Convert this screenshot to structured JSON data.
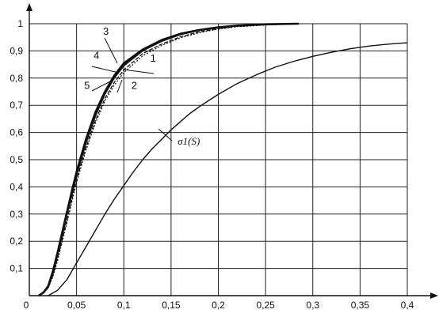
{
  "chart_data": {
    "type": "line",
    "xlim": [
      0,
      0.4
    ],
    "ylim": [
      0,
      1
    ],
    "grid": true,
    "x_ticks": [
      "0",
      "0,05",
      "0,1",
      "0,15",
      "0,2",
      "0,25",
      "0,3",
      "0,35",
      "0,4"
    ],
    "y_ticks": [
      "0,1",
      "0,2",
      "0,3",
      "0,4",
      "0,5",
      "0,6",
      "0,7",
      "0,8",
      "0,9",
      "1"
    ],
    "series": [
      {
        "name": "1",
        "points": [
          [
            0.01,
            0
          ],
          [
            0.015,
            0.01
          ],
          [
            0.02,
            0.03
          ],
          [
            0.025,
            0.08
          ],
          [
            0.03,
            0.15
          ],
          [
            0.035,
            0.22
          ],
          [
            0.04,
            0.3
          ],
          [
            0.045,
            0.37
          ],
          [
            0.05,
            0.44
          ],
          [
            0.06,
            0.56
          ],
          [
            0.07,
            0.66
          ],
          [
            0.08,
            0.74
          ],
          [
            0.09,
            0.8
          ],
          [
            0.1,
            0.845
          ],
          [
            0.12,
            0.9
          ],
          [
            0.14,
            0.935
          ],
          [
            0.16,
            0.96
          ],
          [
            0.18,
            0.975
          ],
          [
            0.2,
            0.985
          ],
          [
            0.22,
            0.992
          ],
          [
            0.25,
            0.997
          ],
          [
            0.285,
            1.0
          ]
        ]
      },
      {
        "name": "2",
        "points": [
          [
            0.01,
            0
          ],
          [
            0.015,
            0.01
          ],
          [
            0.02,
            0.03
          ],
          [
            0.025,
            0.075
          ],
          [
            0.03,
            0.14
          ],
          [
            0.035,
            0.21
          ],
          [
            0.04,
            0.28
          ],
          [
            0.045,
            0.355
          ],
          [
            0.05,
            0.425
          ],
          [
            0.06,
            0.545
          ],
          [
            0.07,
            0.645
          ],
          [
            0.08,
            0.725
          ],
          [
            0.09,
            0.785
          ],
          [
            0.1,
            0.83
          ],
          [
            0.12,
            0.89
          ],
          [
            0.14,
            0.925
          ],
          [
            0.16,
            0.952
          ],
          [
            0.18,
            0.97
          ],
          [
            0.2,
            0.982
          ],
          [
            0.22,
            0.99
          ],
          [
            0.25,
            0.996
          ],
          [
            0.285,
            1.0
          ]
        ]
      },
      {
        "name": "3",
        "points": [
          [
            0.01,
            0
          ],
          [
            0.015,
            0.012
          ],
          [
            0.02,
            0.035
          ],
          [
            0.025,
            0.09
          ],
          [
            0.03,
            0.16
          ],
          [
            0.035,
            0.235
          ],
          [
            0.04,
            0.31
          ],
          [
            0.045,
            0.385
          ],
          [
            0.05,
            0.455
          ],
          [
            0.06,
            0.575
          ],
          [
            0.07,
            0.675
          ],
          [
            0.08,
            0.75
          ],
          [
            0.09,
            0.81
          ],
          [
            0.1,
            0.855
          ],
          [
            0.12,
            0.905
          ],
          [
            0.14,
            0.94
          ],
          [
            0.16,
            0.963
          ],
          [
            0.18,
            0.977
          ],
          [
            0.2,
            0.987
          ],
          [
            0.22,
            0.993
          ],
          [
            0.25,
            0.998
          ],
          [
            0.285,
            1.0
          ]
        ]
      },
      {
        "name": "4",
        "points": [
          [
            0.01,
            0
          ],
          [
            0.015,
            0.011
          ],
          [
            0.02,
            0.032
          ],
          [
            0.025,
            0.085
          ],
          [
            0.03,
            0.155
          ],
          [
            0.035,
            0.228
          ],
          [
            0.04,
            0.305
          ],
          [
            0.045,
            0.378
          ],
          [
            0.05,
            0.448
          ],
          [
            0.06,
            0.568
          ],
          [
            0.07,
            0.668
          ],
          [
            0.08,
            0.745
          ],
          [
            0.09,
            0.805
          ],
          [
            0.1,
            0.85
          ],
          [
            0.12,
            0.903
          ],
          [
            0.14,
            0.938
          ],
          [
            0.16,
            0.962
          ],
          [
            0.18,
            0.976
          ],
          [
            0.2,
            0.986
          ],
          [
            0.22,
            0.993
          ],
          [
            0.25,
            0.997
          ],
          [
            0.285,
            1.0
          ]
        ]
      },
      {
        "name": "5",
        "points": [
          [
            0.01,
            0
          ],
          [
            0.015,
            0.009
          ],
          [
            0.02,
            0.028
          ],
          [
            0.025,
            0.07
          ],
          [
            0.03,
            0.13
          ],
          [
            0.035,
            0.2
          ],
          [
            0.04,
            0.27
          ],
          [
            0.045,
            0.345
          ],
          [
            0.05,
            0.415
          ],
          [
            0.06,
            0.535
          ],
          [
            0.07,
            0.635
          ],
          [
            0.08,
            0.715
          ],
          [
            0.09,
            0.775
          ],
          [
            0.1,
            0.82
          ],
          [
            0.12,
            0.882
          ],
          [
            0.14,
            0.92
          ],
          [
            0.16,
            0.948
          ],
          [
            0.18,
            0.967
          ],
          [
            0.2,
            0.98
          ],
          [
            0.22,
            0.989
          ],
          [
            0.25,
            0.995
          ],
          [
            0.285,
            1.0
          ]
        ]
      },
      {
        "name": "σ1(S)",
        "points": [
          [
            0.02,
            0
          ],
          [
            0.03,
            0.02
          ],
          [
            0.04,
            0.06
          ],
          [
            0.05,
            0.12
          ],
          [
            0.06,
            0.18
          ],
          [
            0.07,
            0.24
          ],
          [
            0.08,
            0.3
          ],
          [
            0.09,
            0.355
          ],
          [
            0.1,
            0.405
          ],
          [
            0.11,
            0.455
          ],
          [
            0.12,
            0.5
          ],
          [
            0.13,
            0.54
          ],
          [
            0.14,
            0.575
          ],
          [
            0.15,
            0.61
          ],
          [
            0.16,
            0.64
          ],
          [
            0.17,
            0.67
          ],
          [
            0.18,
            0.695
          ],
          [
            0.19,
            0.718
          ],
          [
            0.2,
            0.74
          ],
          [
            0.22,
            0.78
          ],
          [
            0.24,
            0.812
          ],
          [
            0.26,
            0.84
          ],
          [
            0.28,
            0.862
          ],
          [
            0.3,
            0.88
          ],
          [
            0.32,
            0.895
          ],
          [
            0.34,
            0.908
          ],
          [
            0.36,
            0.918
          ],
          [
            0.38,
            0.925
          ],
          [
            0.4,
            0.93
          ]
        ]
      }
    ],
    "annotations": [
      {
        "text": "3",
        "x": 0.078,
        "y": 0.96
      },
      {
        "text": "4",
        "x": 0.068,
        "y": 0.87
      },
      {
        "text": "1",
        "x": 0.128,
        "y": 0.86
      },
      {
        "text": "5",
        "x": 0.058,
        "y": 0.76
      },
      {
        "text": "2",
        "x": 0.108,
        "y": 0.76
      },
      {
        "text": "σ1(S)",
        "x": 0.157,
        "y": 0.555
      }
    ]
  }
}
